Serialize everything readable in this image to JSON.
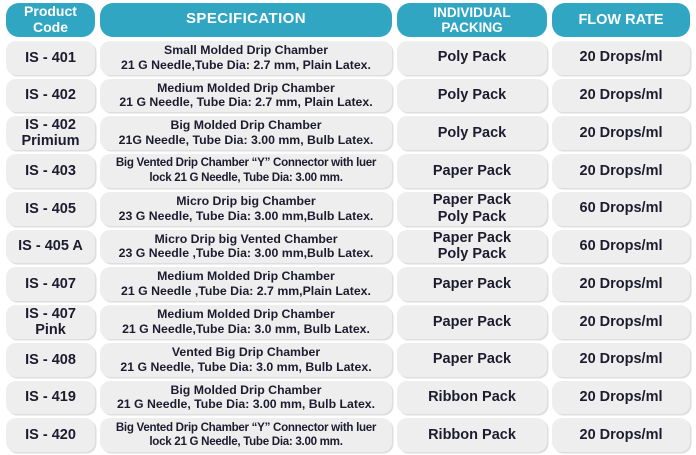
{
  "colors": {
    "header_bg": "#31a6c2",
    "header_text": "#ffffff",
    "row_bg": "#efeeef",
    "row_text": "#1c1c2e",
    "page_bg": "#ffffff"
  },
  "header": {
    "product_code": {
      "line1": "Product",
      "line2": "Code"
    },
    "specification": {
      "line1": "SPECIFICATION"
    },
    "packing": {
      "line1": "INDIVIDUAL",
      "line2": "PACKING"
    },
    "flow_rate": {
      "line1": "FLOW RATE"
    }
  },
  "rows": [
    {
      "code1": "IS - 401",
      "spec1": "Small Molded Drip Chamber",
      "spec2": "21 G Needle,Tube Dia: 2.7 mm, Plain Latex.",
      "pack1": "Poly Pack",
      "flow": "20 Drops/ml"
    },
    {
      "code1": "IS - 402",
      "spec1": "Medium Molded Drip Chamber",
      "spec2": "21 G Needle, Tube Dia: 2.7 mm, Plain Latex.",
      "pack1": "Poly Pack",
      "flow": "20 Drops/ml"
    },
    {
      "code1": "IS - 402",
      "code2": "Primium",
      "spec1": "Big Molded Drip Chamber",
      "spec2": "21G Needle, Tube Dia: 3.00 mm, Bulb Latex.",
      "pack1": "Poly Pack",
      "flow": "20 Drops/ml"
    },
    {
      "code1": "IS - 403",
      "spec1": "Big Vented Drip Chamber “Y” Connector with luer",
      "spec2": "lock 21 G Needle, Tube Dia: 3.00 mm.",
      "pack1": "Paper Pack",
      "flow": "20 Drops/ml"
    },
    {
      "code1": "IS - 405",
      "spec1": "Micro Drip big Chamber",
      "spec2": "23 G Needle, Tube Dia: 3.00 mm,Bulb Latex.",
      "pack1": "Paper Pack",
      "pack2": "Poly Pack",
      "flow": "60 Drops/ml"
    },
    {
      "code1": "IS - 405 A",
      "spec1": "Micro Drip big Vented Chamber",
      "spec2": "23 G Needle ,Tube Dia: 3.00 mm,Bulb Latex.",
      "pack1": "Paper Pack",
      "pack2": "Poly Pack",
      "flow": "60 Drops/ml"
    },
    {
      "code1": "IS - 407",
      "spec1": "Medium Molded Drip Chamber",
      "spec2": "21 G Needle ,Tube Dia: 2.7 mm,Plain Latex.",
      "pack1": "Paper Pack",
      "flow": "20 Drops/ml"
    },
    {
      "code1": "IS - 407",
      "code2": "Pink",
      "spec1": "Medium Molded Drip Chamber",
      "spec2": "21 G Needle,Tube Dia: 3.0 mm, Bulb Latex.",
      "pack1": "Paper Pack",
      "flow": "20 Drops/ml"
    },
    {
      "code1": "IS - 408",
      "spec1": "Vented Big Drip Chamber",
      "spec2": "21 G Needle, Tube Dia: 3.0 mm, Bulb Latex.",
      "pack1": "Paper Pack",
      "flow": "20 Drops/ml"
    },
    {
      "code1": "IS - 419",
      "spec1": "Big Molded Drip Chamber",
      "spec2": "21 G Needle, Tube Dia: 3.00 mm, Bulb Latex.",
      "pack1": "Ribbon Pack",
      "flow": "20 Drops/ml"
    },
    {
      "code1": "IS - 420",
      "spec1": "Big Vented Drip Chamber “Y” Connector with luer",
      "spec2": "lock 21 G Needle, Tube Dia: 3.00 mm.",
      "pack1": "Ribbon Pack",
      "flow": "20 Drops/ml"
    }
  ]
}
